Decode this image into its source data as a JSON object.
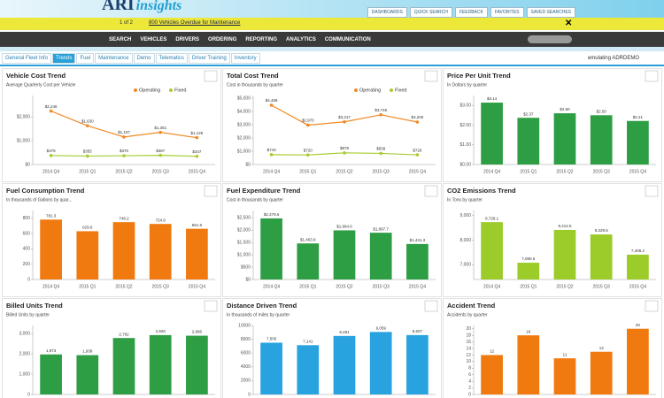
{
  "header": {
    "logo": "ARI",
    "logo_sub": "insights",
    "links": [
      "DASHBOARDS",
      "QUICK SEARCH",
      "FEEDBACK",
      "FAVORITES",
      "SAVED SEARCHES"
    ]
  },
  "alert": {
    "pager": "1 of 2",
    "message": "800 Vehicles Overdue for Maintenance"
  },
  "nav": [
    "SEARCH",
    "VEHICLES",
    "DRIVERS",
    "ORDERING",
    "REPORTING",
    "ANALYTICS",
    "COMMUNICATION"
  ],
  "tabs": [
    "General Fleet Info",
    "Trends",
    "Fuel",
    "Maintenance",
    "Demo",
    "Telematics",
    "Driver Training",
    "Inventory"
  ],
  "emulating": "emulating ADRDEMO",
  "chart_data": [
    {
      "type": "line",
      "title": "Vehicle Cost Trend",
      "subtitle": "Average Quarterly Cost per Vehicle",
      "categories": [
        "2014 Q4",
        "2015 Q1",
        "2015 Q2",
        "2015 Q3",
        "2015 Q4"
      ],
      "series": [
        {
          "name": "Operating",
          "color": "#f08a24",
          "values": [
            2246,
            1630,
            1157,
            1351,
            1128
          ],
          "value_labels": [
            "$2,246",
            "$1,630",
            "$1,157",
            "$1,351",
            "$1,128"
          ]
        },
        {
          "name": "Fixed",
          "color": "#a8cc30",
          "values": [
            378,
            355,
            370,
            387,
            347
          ],
          "value_labels": [
            "$378",
            "$355",
            "$370",
            "$387",
            "$347"
          ]
        }
      ],
      "ylim": [
        0,
        2900
      ],
      "yticks": [
        {
          "value": 0,
          "label": "$0"
        },
        {
          "value": 1000,
          "label": "$1,000"
        },
        {
          "value": 2000,
          "label": "$2,000"
        }
      ]
    },
    {
      "type": "line",
      "title": "Total Cost Trend",
      "subtitle": "Cost in thousands by quarter",
      "categories": [
        "2014 Q4",
        "2015 Q1",
        "2015 Q2",
        "2015 Q3",
        "2015 Q4"
      ],
      "series": [
        {
          "name": "Operating",
          "color": "#f08a24",
          "values": [
            4468,
            2970,
            3217,
            3746,
            3200
          ],
          "value_labels": [
            "$4,468",
            "$2,970",
            "$3,217",
            "$3,746",
            "$3,200"
          ]
        },
        {
          "name": "Fixed",
          "color": "#a8cc30",
          "values": [
            743,
            720,
            878,
            839,
            729
          ],
          "value_labels": [
            "$743",
            "$720",
            "$878",
            "$839",
            "$729"
          ]
        }
      ],
      "ylim": [
        0,
        5200
      ],
      "yticks": [
        {
          "value": 0,
          "label": "$0"
        },
        {
          "value": 1000,
          "label": "$1,000"
        },
        {
          "value": 2000,
          "label": "$2,000"
        },
        {
          "value": 3000,
          "label": "$3,000"
        },
        {
          "value": 4000,
          "label": "$4,000"
        },
        {
          "value": 5000,
          "label": "$5,000"
        }
      ]
    },
    {
      "type": "bar",
      "title": "Price Per Unit Trend",
      "subtitle": "In Dollars by quarter",
      "color": "#2e9e45",
      "categories": [
        "2014 Q4",
        "2015 Q1",
        "2015 Q2",
        "2015 Q3",
        "2015 Q4"
      ],
      "values": [
        3.14,
        2.37,
        2.6,
        2.5,
        2.21
      ],
      "value_labels": [
        "$3.14",
        "$2.37",
        "$2.60",
        "$2.50",
        "$2.21"
      ],
      "ylim": [
        0,
        3.5
      ],
      "yticks": [
        {
          "value": 0,
          "label": "$0.00"
        },
        {
          "value": 1,
          "label": "$1.00"
        },
        {
          "value": 2,
          "label": "$2.00"
        },
        {
          "value": 3,
          "label": "$3.00"
        }
      ]
    },
    {
      "type": "bar",
      "title": "Fuel Consumption Trend",
      "subtitle": "In thousands of Gallons by quar...",
      "color": "#f07a10",
      "categories": [
        "2014 Q4",
        "2015 Q1",
        "2015 Q2",
        "2015 Q3",
        "2015 Q4"
      ],
      "values": [
        781.3,
        629.6,
        748.2,
        724.6,
        661.8
      ],
      "ylim": [
        0,
        900
      ],
      "yticks": [
        0,
        200,
        400,
        600,
        800
      ]
    },
    {
      "type": "bar",
      "title": "Fuel Expenditure Trend",
      "subtitle": "Cost in thousands by quarter",
      "color": "#2e9e45",
      "categories": [
        "2014 Q4",
        "2015 Q1",
        "2015 Q2",
        "2015 Q3",
        "2015 Q4"
      ],
      "values": [
        2479.6,
        1463.8,
        1994.6,
        1897.7,
        1441.3
      ],
      "value_labels": [
        "$2,479.6",
        "$1,463.8",
        "$1,994.6",
        "$1,897.7",
        "$1,441.3"
      ],
      "ylim": [
        0,
        2800
      ],
      "yticks": [
        {
          "value": 0,
          "label": "$0"
        },
        {
          "value": 500,
          "label": "$500"
        },
        {
          "value": 1000,
          "label": "$1,000"
        },
        {
          "value": 1500,
          "label": "$1,500"
        },
        {
          "value": 2000,
          "label": "$2,000"
        },
        {
          "value": 2500,
          "label": "$2,500"
        }
      ]
    },
    {
      "type": "bar",
      "title": "CO2 Emissions Trend",
      "subtitle": "In Tons by quarter",
      "color": "#9ccc2a",
      "categories": [
        "2014 Q4",
        "2015 Q1",
        "2015 Q2",
        "2015 Q3",
        "2015 Q4"
      ],
      "values": [
        8728.1,
        7080.6,
        8412.5,
        8229.5,
        7408.2
      ],
      "value_labels": [
        "8,728.1",
        "7,080.6",
        "8,412.5",
        "8,229.5",
        "7,408.2"
      ],
      "ylim": [
        6400,
        9200
      ],
      "yticks": [
        {
          "value": 7000,
          "label": "7,000"
        },
        {
          "value": 8000,
          "label": "8,000"
        },
        {
          "value": 9000,
          "label": "9,000"
        }
      ]
    },
    {
      "type": "bar",
      "title": "Billed Units Trend",
      "subtitle": "Billed Units by quarter",
      "color": "#2e9e45",
      "categories": [
        "2014 Q4",
        "2015 Q1",
        "2015 Q2",
        "2015 Q3",
        "2015 Q4"
      ],
      "values": [
        1973,
        1938,
        2782,
        2926,
        2896
      ],
      "value_labels": [
        "1,973",
        "1,938",
        "2,782",
        "2,926",
        "2,896"
      ],
      "ylim": [
        0,
        3400
      ],
      "yticks": [
        0,
        {
          "value": 1000,
          "label": "1,000"
        },
        {
          "value": 2000,
          "label": "2,000"
        },
        {
          "value": 3000,
          "label": "3,000"
        }
      ]
    },
    {
      "type": "bar",
      "title": "Distance Driven Trend",
      "subtitle": "In thousands of miles by quarter",
      "color": "#29a3e0",
      "categories": [
        "2014 Q4",
        "2015 Q1",
        "2015 Q2",
        "2015 Q3",
        "2015 Q4"
      ],
      "values": [
        7505,
        7141,
        8481,
        9059,
        8607
      ],
      "value_labels": [
        "7,505",
        "7,141",
        "8,481",
        "9,059",
        "8,607"
      ],
      "ylim": [
        0,
        10000
      ],
      "yticks": [
        0,
        2000,
        4000,
        6000,
        8000,
        10000
      ]
    },
    {
      "type": "bar",
      "title": "Accident Trend",
      "subtitle": "Accidents by quarter",
      "color": "#f07a10",
      "categories": [
        "2014 Q4",
        "2015 Q1",
        "2015 Q2",
        "2015 Q3",
        "2015 Q4"
      ],
      "values": [
        12,
        18,
        11,
        13,
        20
      ],
      "ylim": [
        0,
        21
      ],
      "yticks": [
        0,
        2,
        4,
        6,
        8,
        10,
        12,
        14,
        16,
        18,
        20
      ]
    }
  ]
}
